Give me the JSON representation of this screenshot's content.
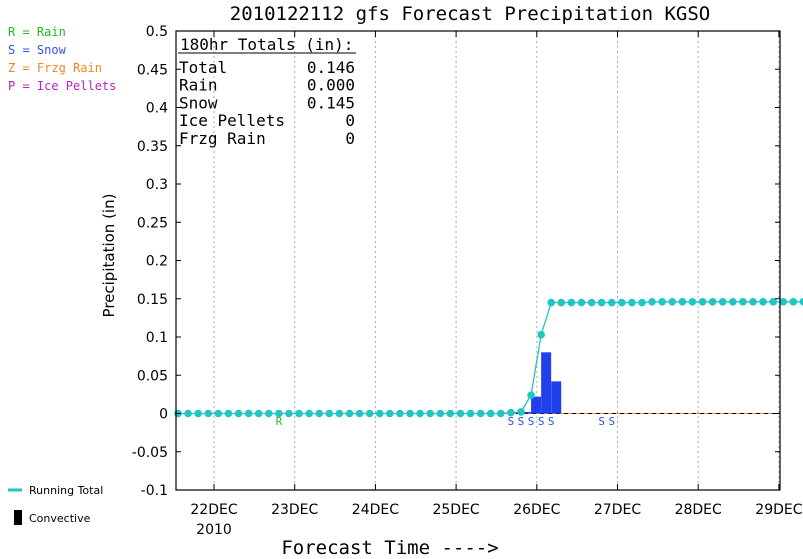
{
  "chart_data": {
    "type": "bar",
    "title": "2010122112 gfs Forecast Precipitation KGSO",
    "xlabel": "Forecast Time ---->",
    "ylabel": "Precipitation (in)",
    "ylim": [
      -0.1,
      0.5
    ],
    "yticks": [
      "0.5",
      "0.45",
      "0.4",
      "0.35",
      "0.3",
      "0.25",
      "0.2",
      "0.15",
      "0.1",
      "0.05",
      "0",
      "-0.05",
      "-0.1"
    ],
    "xticks": [
      "22DEC",
      "23DEC",
      "24DEC",
      "25DEC",
      "26DEC",
      "27DEC",
      "28DEC",
      "29DEC"
    ],
    "year_label": "2010",
    "grid": true,
    "legend": [
      {
        "code": "R = Rain",
        "color": "#22bb22"
      },
      {
        "code": "S = Snow",
        "color": "#3355ee"
      },
      {
        "code": "Z = Frzg Rain",
        "color": "#ee8822"
      },
      {
        "code": "P = Ice Pellets",
        "color": "#bb22bb"
      }
    ],
    "bottom_legend": {
      "running_total": "Running Total",
      "convective": "Convective"
    },
    "totals_box": {
      "header": "180hr Totals (in):",
      "rows": [
        {
          "label": "Total",
          "value": "0.146"
        },
        {
          "label": "Rain",
          "value": "0.000"
        },
        {
          "label": "Snow",
          "value": "0.145"
        },
        {
          "label": "Ice Pellets",
          "value": "0"
        },
        {
          "label": "Frzg Rain",
          "value": "0"
        }
      ]
    },
    "series": [
      {
        "name": "Running Total",
        "color": "#22c4c4",
        "x_start_hours": 0,
        "x_step_hours": 3,
        "values": [
          0,
          0,
          0,
          0,
          0,
          0,
          0,
          0,
          0,
          0,
          0,
          0,
          0,
          0,
          0,
          0,
          0,
          0,
          0,
          0,
          0,
          0,
          0,
          0,
          0,
          0,
          0,
          0,
          0,
          0,
          0,
          0,
          0,
          0.001,
          0.002,
          0.024,
          0.103,
          0.145,
          0.145,
          0.145,
          0.145,
          0.145,
          0.145,
          0.145,
          0.145,
          0.145,
          0.145,
          0.146,
          0.146,
          0.146,
          0.146,
          0.146,
          0.146,
          0.146,
          0.146,
          0.146,
          0.146,
          0.146,
          0.146,
          0.146,
          0.146,
          0.146,
          0.146
        ]
      }
    ],
    "bars": [
      {
        "x_hour": 102,
        "value": 0.002
      },
      {
        "x_hour": 105,
        "value": 0.022
      },
      {
        "x_hour": 108,
        "value": 0.08
      },
      {
        "x_hour": 111,
        "value": 0.042
      }
    ],
    "ptype_markers": [
      {
        "x_hour": 30,
        "type": "R"
      },
      {
        "x_hour": 99,
        "type": "S"
      },
      {
        "x_hour": 102,
        "type": "S"
      },
      {
        "x_hour": 105,
        "type": "S"
      },
      {
        "x_hour": 108,
        "type": "S"
      },
      {
        "x_hour": 111,
        "type": "S"
      },
      {
        "x_hour": 126,
        "type": "S"
      },
      {
        "x_hour": 129,
        "type": "S"
      }
    ]
  }
}
